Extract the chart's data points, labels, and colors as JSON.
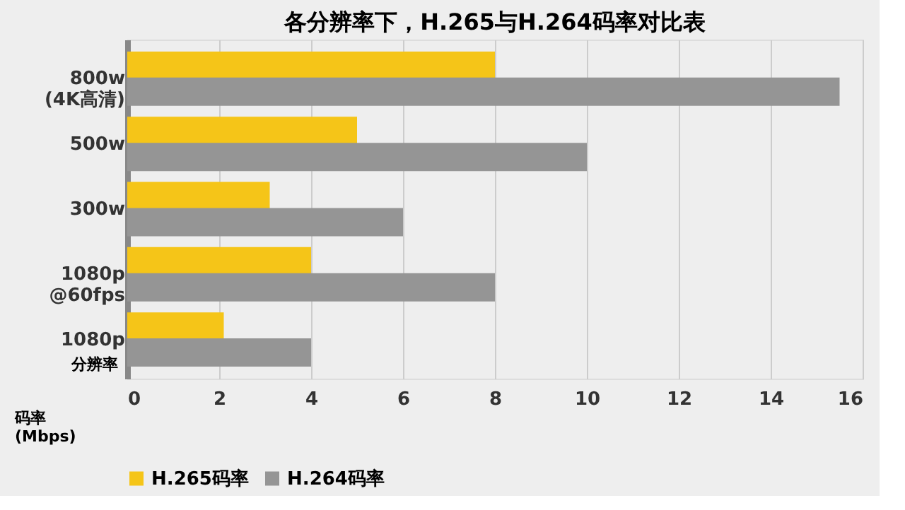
{
  "chart_data": {
    "type": "bar",
    "orientation": "horizontal",
    "title": "各分辨率下，H.265与H.264码率对比表",
    "ylabel": "分辨率",
    "xlabel": "码率\n(Mbps)",
    "categories": [
      "800w\n(4K高清)",
      "500w",
      "300w",
      "1080p\n@60fps",
      "1080p"
    ],
    "series": [
      {
        "name": "H.265码率",
        "color": "#f5c518",
        "values": [
          8,
          5,
          3.1,
          4,
          2.1
        ]
      },
      {
        "name": "H.264码率",
        "color": "#959595",
        "values": [
          15.5,
          10,
          6,
          8,
          4
        ]
      }
    ],
    "xlim": [
      0,
      16
    ],
    "xticks": [
      0,
      2,
      4,
      6,
      8,
      10,
      12,
      14,
      16
    ],
    "grid": "x",
    "legend": "bottom"
  }
}
